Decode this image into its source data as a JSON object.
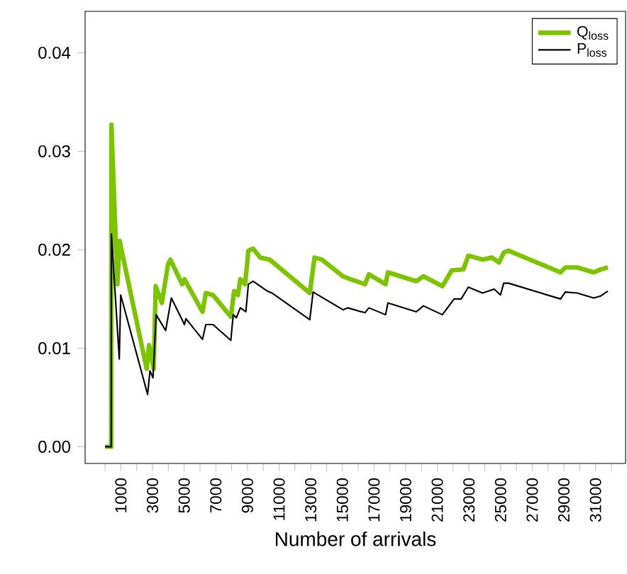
{
  "chart_data": {
    "type": "line",
    "xlabel": "Number of arrivals",
    "xlim": [
      -1260,
      32900
    ],
    "ylim": [
      -0.0017,
      0.0442
    ],
    "xticks": [
      {
        "value": 0,
        "label": null
      },
      1000,
      {
        "value": 2000,
        "label": null
      },
      3000,
      {
        "value": 4000,
        "label": null
      },
      5000,
      {
        "value": 6000,
        "label": null
      },
      7000,
      {
        "value": 8000,
        "label": null
      },
      9000,
      {
        "value": 10000,
        "label": null
      },
      11000,
      {
        "value": 12000,
        "label": null
      },
      13000,
      {
        "value": 14000,
        "label": null
      },
      15000,
      {
        "value": 16000,
        "label": null
      },
      17000,
      {
        "value": 18000,
        "label": null
      },
      19000,
      {
        "value": 20000,
        "label": null
      },
      21000,
      {
        "value": 22000,
        "label": null
      },
      23000,
      {
        "value": 24000,
        "label": null
      },
      25000,
      {
        "value": 26000,
        "label": null
      },
      27000,
      {
        "value": 28000,
        "label": null
      },
      29000,
      {
        "value": 30000,
        "label": null
      },
      31000,
      {
        "value": 32000,
        "label": null
      }
    ],
    "yticks": [
      {
        "value": 0,
        "label": "0.00"
      },
      {
        "value": 0.01,
        "label": "0.01"
      },
      {
        "value": 0.02,
        "label": "0.02"
      },
      {
        "value": 0.03,
        "label": "0.03"
      },
      {
        "value": 0.04,
        "label": "0.04"
      }
    ],
    "grid": false,
    "legend": "top right",
    "marker": "none",
    "line_style": "solid",
    "series": [
      {
        "name": "Q$_{loss}$",
        "color": "#7dc400",
        "x": [
          0,
          390,
          400,
          780,
          920,
          2630,
          2780,
          3080,
          3200,
          3590,
          3980,
          4130,
          4870,
          5020,
          6160,
          6370,
          6820,
          7950,
          8160,
          8400,
          8550,
          8850,
          9060,
          9360,
          9810,
          10400,
          12940,
          13240,
          13700,
          15040,
          15500,
          16430,
          16680,
          17730,
          17880,
          19670,
          20120,
          21320,
          21910,
          22650,
          22960,
          23860,
          24450,
          24900,
          25200,
          25500,
          28790,
          29090,
          29840,
          30880,
          31330,
          31780
        ],
        "values": [
          0,
          0,
          0.0327,
          0.0165,
          0.0209,
          0.0079,
          0.0103,
          0.0079,
          0.0163,
          0.0146,
          0.0185,
          0.019,
          0.0165,
          0.017,
          0.0137,
          0.0156,
          0.0154,
          0.0132,
          0.0158,
          0.0154,
          0.017,
          0.0165,
          0.0199,
          0.0201,
          0.0192,
          0.019,
          0.0156,
          0.0192,
          0.019,
          0.0173,
          0.017,
          0.0165,
          0.0175,
          0.0165,
          0.0177,
          0.0168,
          0.0173,
          0.0163,
          0.0179,
          0.018,
          0.0194,
          0.019,
          0.0192,
          0.0187,
          0.0197,
          0.0199,
          0.0177,
          0.0182,
          0.0182,
          0.0177,
          0.018,
          0.0182
        ]
      },
      {
        "name": "P$_{loss}$",
        "color": "#000000",
        "x": [
          0,
          390,
          400,
          900,
          990,
          2690,
          2840,
          3030,
          3230,
          3830,
          4190,
          5020,
          5110,
          6160,
          6370,
          6820,
          7950,
          8100,
          8300,
          8550,
          8900,
          9060,
          9360,
          10260,
          10560,
          12940,
          13150,
          15040,
          15340,
          16430,
          16680,
          17730,
          17880,
          19670,
          20120,
          21320,
          22060,
          22510,
          22960,
          23860,
          24600,
          24990,
          25200,
          25500,
          28790,
          29090,
          29840,
          30880,
          31330,
          31780
        ],
        "values": [
          0,
          0,
          0.0216,
          0.0089,
          0.0154,
          0.0053,
          0.0077,
          0.007,
          0.0134,
          0.0118,
          0.0151,
          0.0124,
          0.013,
          0.0109,
          0.0124,
          0.0124,
          0.0108,
          0.0134,
          0.0131,
          0.0141,
          0.0137,
          0.0165,
          0.0168,
          0.0158,
          0.0156,
          0.0129,
          0.0157,
          0.0139,
          0.0141,
          0.0136,
          0.0141,
          0.0134,
          0.0146,
          0.0137,
          0.0143,
          0.0134,
          0.015,
          0.015,
          0.0162,
          0.0156,
          0.016,
          0.0154,
          0.0166,
          0.0166,
          0.015,
          0.0157,
          0.0156,
          0.0151,
          0.0153,
          0.0158
        ]
      }
    ]
  }
}
